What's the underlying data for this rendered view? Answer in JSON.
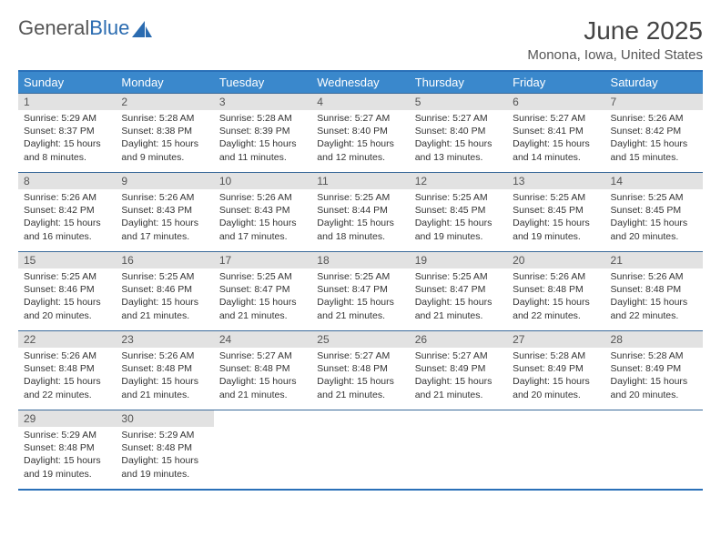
{
  "logo": {
    "part1": "General",
    "part2": "Blue"
  },
  "title": "June 2025",
  "location": "Monona, Iowa, United States",
  "header_bg": "#3a88cc",
  "border_color": "#2a70b8",
  "daynum_bg": "#e2e2e2",
  "day_names": [
    "Sunday",
    "Monday",
    "Tuesday",
    "Wednesday",
    "Thursday",
    "Friday",
    "Saturday"
  ],
  "weeks": [
    [
      {
        "n": "1",
        "sr": "5:29 AM",
        "ss": "8:37 PM",
        "dl": "15 hours and 8 minutes."
      },
      {
        "n": "2",
        "sr": "5:28 AM",
        "ss": "8:38 PM",
        "dl": "15 hours and 9 minutes."
      },
      {
        "n": "3",
        "sr": "5:28 AM",
        "ss": "8:39 PM",
        "dl": "15 hours and 11 minutes."
      },
      {
        "n": "4",
        "sr": "5:27 AM",
        "ss": "8:40 PM",
        "dl": "15 hours and 12 minutes."
      },
      {
        "n": "5",
        "sr": "5:27 AM",
        "ss": "8:40 PM",
        "dl": "15 hours and 13 minutes."
      },
      {
        "n": "6",
        "sr": "5:27 AM",
        "ss": "8:41 PM",
        "dl": "15 hours and 14 minutes."
      },
      {
        "n": "7",
        "sr": "5:26 AM",
        "ss": "8:42 PM",
        "dl": "15 hours and 15 minutes."
      }
    ],
    [
      {
        "n": "8",
        "sr": "5:26 AM",
        "ss": "8:42 PM",
        "dl": "15 hours and 16 minutes."
      },
      {
        "n": "9",
        "sr": "5:26 AM",
        "ss": "8:43 PM",
        "dl": "15 hours and 17 minutes."
      },
      {
        "n": "10",
        "sr": "5:26 AM",
        "ss": "8:43 PM",
        "dl": "15 hours and 17 minutes."
      },
      {
        "n": "11",
        "sr": "5:25 AM",
        "ss": "8:44 PM",
        "dl": "15 hours and 18 minutes."
      },
      {
        "n": "12",
        "sr": "5:25 AM",
        "ss": "8:45 PM",
        "dl": "15 hours and 19 minutes."
      },
      {
        "n": "13",
        "sr": "5:25 AM",
        "ss": "8:45 PM",
        "dl": "15 hours and 19 minutes."
      },
      {
        "n": "14",
        "sr": "5:25 AM",
        "ss": "8:45 PM",
        "dl": "15 hours and 20 minutes."
      }
    ],
    [
      {
        "n": "15",
        "sr": "5:25 AM",
        "ss": "8:46 PM",
        "dl": "15 hours and 20 minutes."
      },
      {
        "n": "16",
        "sr": "5:25 AM",
        "ss": "8:46 PM",
        "dl": "15 hours and 21 minutes."
      },
      {
        "n": "17",
        "sr": "5:25 AM",
        "ss": "8:47 PM",
        "dl": "15 hours and 21 minutes."
      },
      {
        "n": "18",
        "sr": "5:25 AM",
        "ss": "8:47 PM",
        "dl": "15 hours and 21 minutes."
      },
      {
        "n": "19",
        "sr": "5:25 AM",
        "ss": "8:47 PM",
        "dl": "15 hours and 21 minutes."
      },
      {
        "n": "20",
        "sr": "5:26 AM",
        "ss": "8:48 PM",
        "dl": "15 hours and 22 minutes."
      },
      {
        "n": "21",
        "sr": "5:26 AM",
        "ss": "8:48 PM",
        "dl": "15 hours and 22 minutes."
      }
    ],
    [
      {
        "n": "22",
        "sr": "5:26 AM",
        "ss": "8:48 PM",
        "dl": "15 hours and 22 minutes."
      },
      {
        "n": "23",
        "sr": "5:26 AM",
        "ss": "8:48 PM",
        "dl": "15 hours and 21 minutes."
      },
      {
        "n": "24",
        "sr": "5:27 AM",
        "ss": "8:48 PM",
        "dl": "15 hours and 21 minutes."
      },
      {
        "n": "25",
        "sr": "5:27 AM",
        "ss": "8:48 PM",
        "dl": "15 hours and 21 minutes."
      },
      {
        "n": "26",
        "sr": "5:27 AM",
        "ss": "8:49 PM",
        "dl": "15 hours and 21 minutes."
      },
      {
        "n": "27",
        "sr": "5:28 AM",
        "ss": "8:49 PM",
        "dl": "15 hours and 20 minutes."
      },
      {
        "n": "28",
        "sr": "5:28 AM",
        "ss": "8:49 PM",
        "dl": "15 hours and 20 minutes."
      }
    ],
    [
      {
        "n": "29",
        "sr": "5:29 AM",
        "ss": "8:48 PM",
        "dl": "15 hours and 19 minutes."
      },
      {
        "n": "30",
        "sr": "5:29 AM",
        "ss": "8:48 PM",
        "dl": "15 hours and 19 minutes."
      },
      null,
      null,
      null,
      null,
      null
    ]
  ],
  "labels": {
    "sunrise": "Sunrise: ",
    "sunset": "Sunset: ",
    "daylight": "Daylight: "
  }
}
